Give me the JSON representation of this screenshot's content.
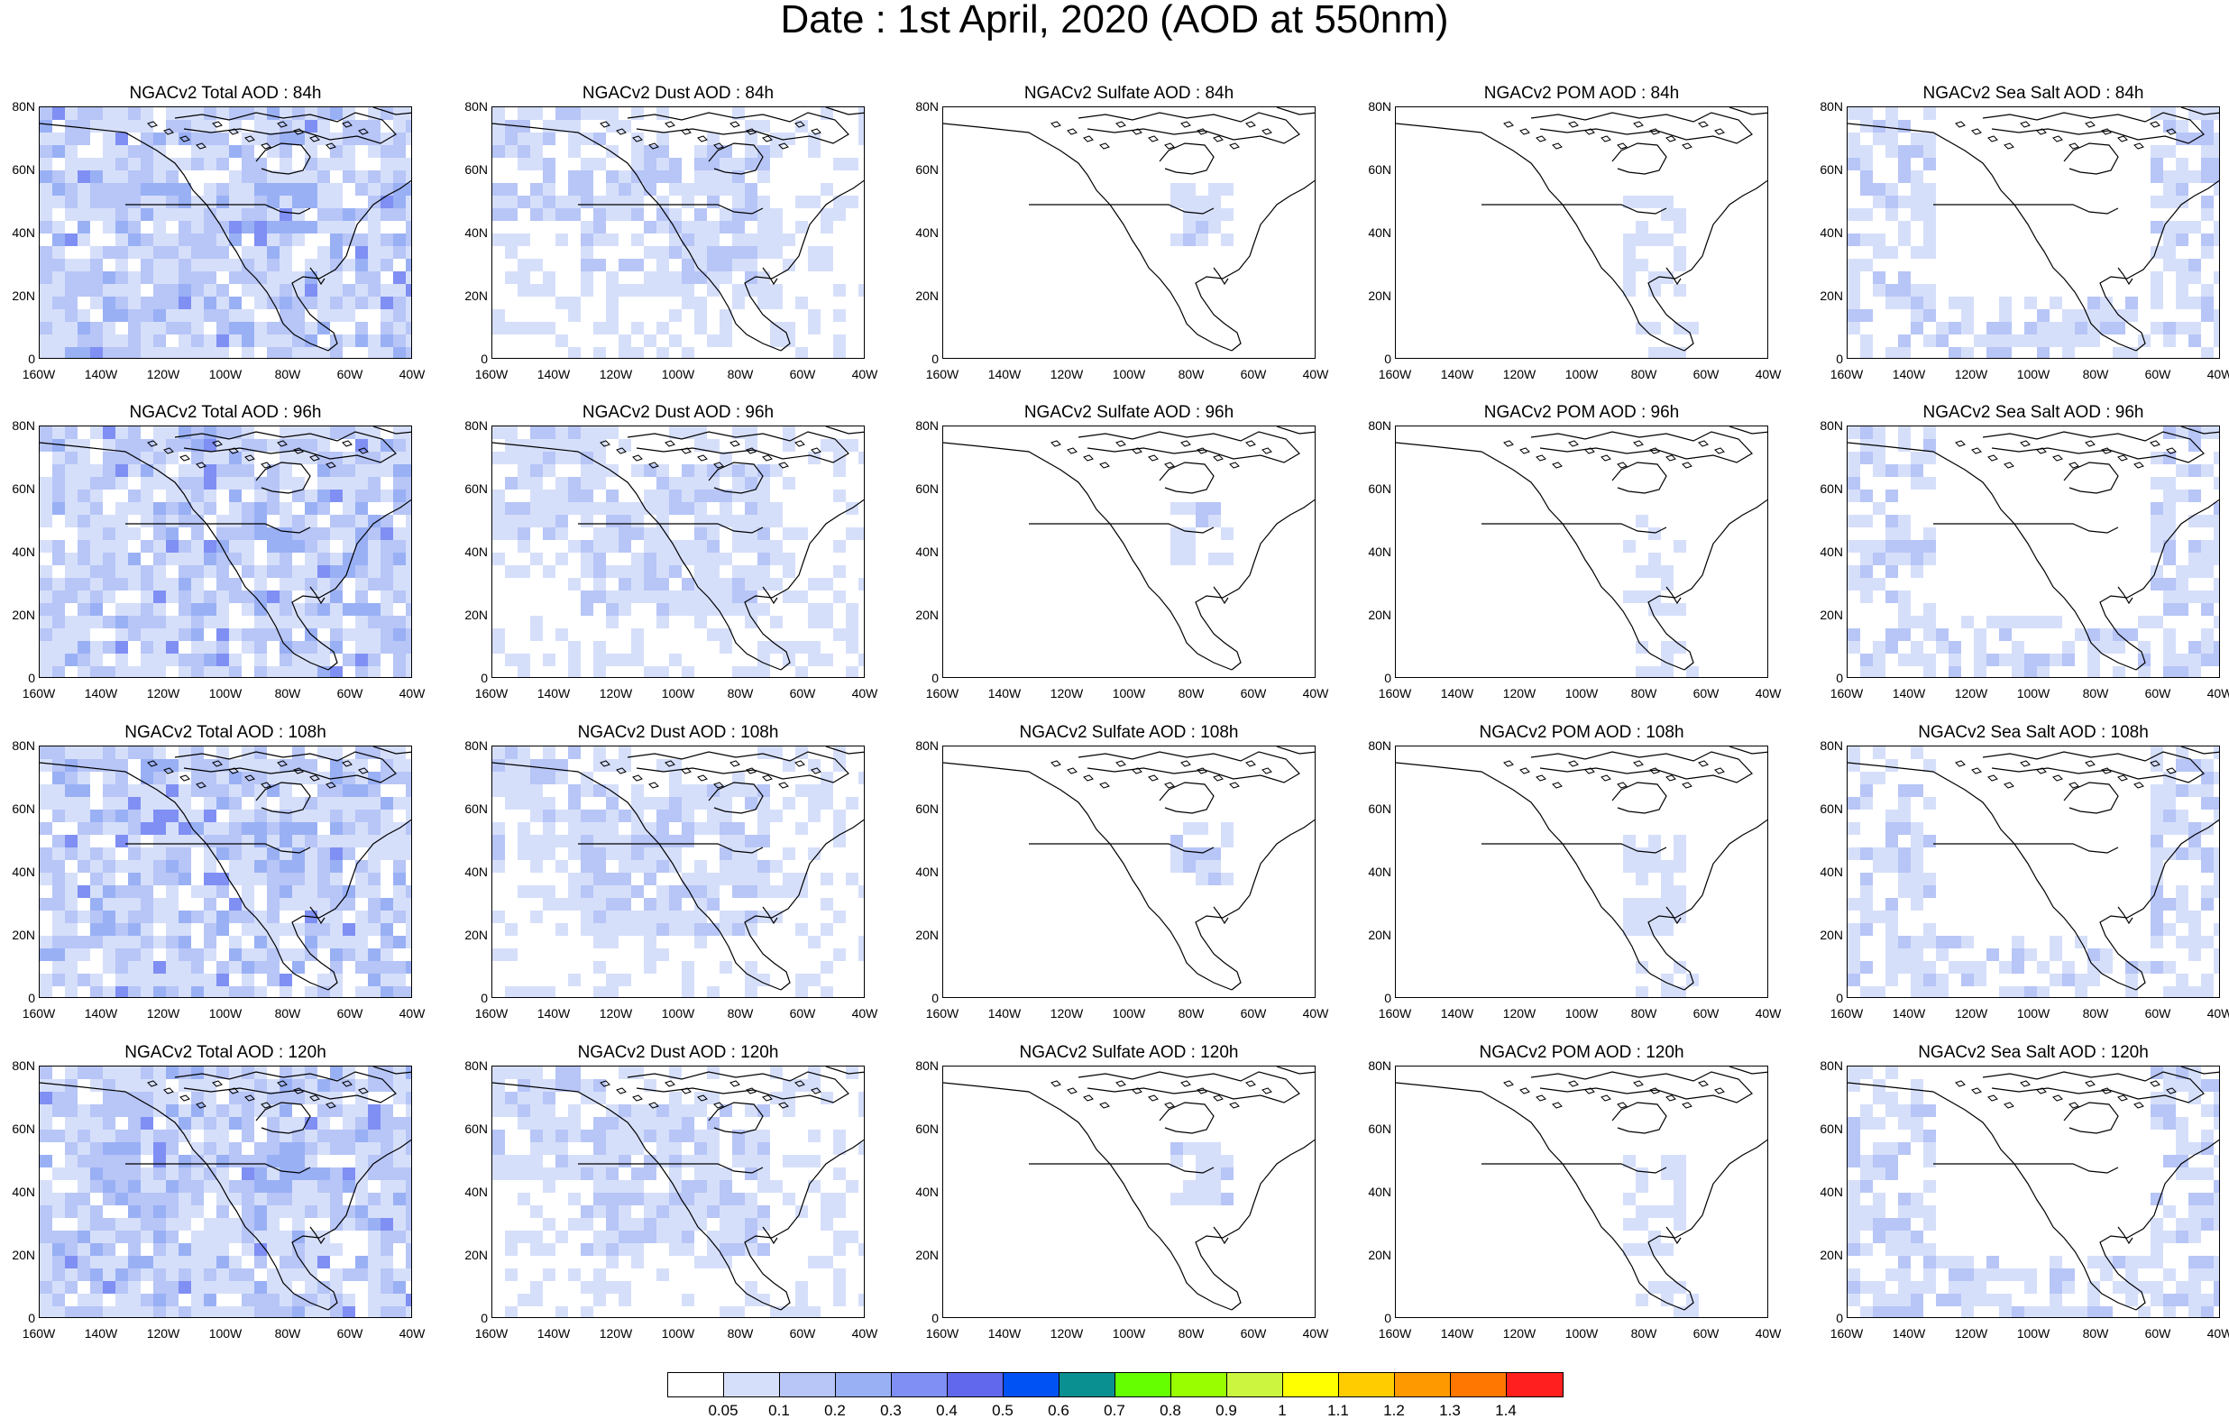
{
  "title": "Date : 1st April, 2020 (AOD at 550nm)",
  "grid": {
    "rows": [
      "84h",
      "96h",
      "108h",
      "120h"
    ],
    "panels": [
      [
        "NGACv2 Total AOD : 84h",
        "NGACv2 Dust AOD : 84h",
        "NGACv2 Sulfate AOD : 84h",
        "NGACv2 POM AOD : 84h",
        "NGACv2 Sea Salt AOD : 84h"
      ],
      [
        "NGACv2 Total AOD : 96h",
        "NGACv2 Dust AOD : 96h",
        "NGACv2 Sulfate AOD : 96h",
        "NGACv2 POM AOD : 96h",
        "NGACv2 Sea Salt AOD : 96h"
      ],
      [
        "NGACv2 Total AOD : 108h",
        "NGACv2 Dust AOD : 108h",
        "NGACv2 Sulfate AOD : 108h",
        "NGACv2 POM AOD : 108h",
        "NGACv2 Sea Salt AOD : 108h"
      ],
      [
        "NGACv2 Total AOD : 120h",
        "NGACv2 Dust AOD : 120h",
        "NGACv2 Sulfate AOD : 120h",
        "NGACv2 POM AOD : 120h",
        "NGACv2 Sea Salt  AOD : 120h"
      ]
    ]
  },
  "axes": {
    "lat_ticks": [
      "80N",
      "60N",
      "40N",
      "20N",
      "0"
    ],
    "lon_ticks": [
      "160W",
      "140W",
      "120W",
      "100W",
      "80W",
      "60W",
      "40W"
    ]
  },
  "colorbar": {
    "colors": [
      "#ffffff",
      "#d6dffa",
      "#b7c5f7",
      "#99b0f5",
      "#7f8ff3",
      "#6268ee",
      "#0052f5",
      "#0a9090",
      "#66ff00",
      "#99ff00",
      "#ccf540",
      "#ffff00",
      "#ffcc00",
      "#ff9900",
      "#ff7700",
      "#ff1f1f"
    ],
    "labels": [
      "0.05",
      "0.1",
      "0.2",
      "0.3",
      "0.4",
      "0.5",
      "0.6",
      "0.7",
      "0.8",
      "0.9",
      "1",
      "1.1",
      "1.2",
      "1.3",
      "1.4"
    ]
  },
  "fields": {
    "total": "widespread light blue (0.05–0.2) with patches of 0.2–0.4",
    "dust": "light blue over North Pacific and continental US",
    "sulfate": "mostly below 0.05, light blue over eastern US",
    "pom": "mostly below 0.05, light blue over eastern US and Central America",
    "seasalt": "light blue over oceans, North Atlantic and Pacific"
  }
}
